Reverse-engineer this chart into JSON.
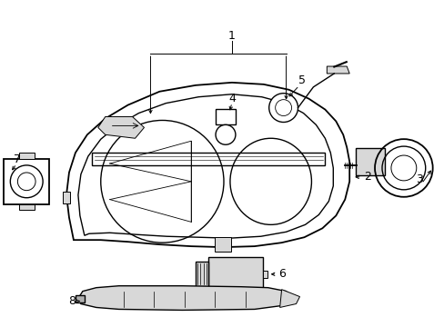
{
  "background_color": "#ffffff",
  "line_color": "#000000",
  "gray_fill": "#b0b0b0",
  "light_gray": "#d8d8d8",
  "fig_width": 4.89,
  "fig_height": 3.6,
  "dpi": 100
}
